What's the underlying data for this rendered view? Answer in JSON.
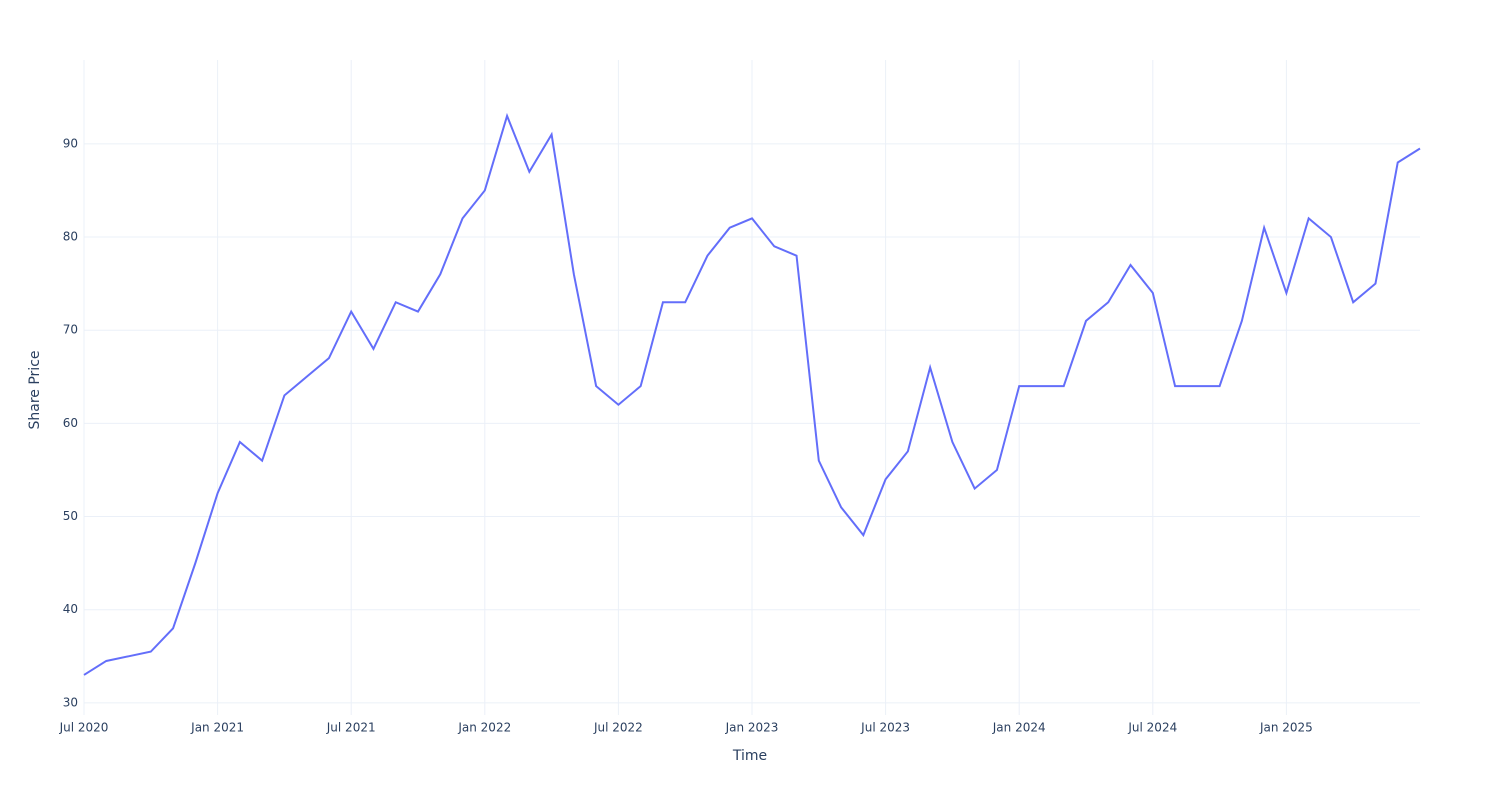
{
  "chart_data": {
    "type": "line",
    "x_label": "Time",
    "y_label": "Share Price",
    "x": [
      "2020-07",
      "2020-08",
      "2020-09",
      "2020-10",
      "2020-11",
      "2020-12",
      "2021-01",
      "2021-02",
      "2021-03",
      "2021-04",
      "2021-05",
      "2021-06",
      "2021-07",
      "2021-08",
      "2021-09",
      "2021-10",
      "2021-11",
      "2021-12",
      "2022-01",
      "2022-02",
      "2022-03",
      "2022-04",
      "2022-05",
      "2022-06",
      "2022-07",
      "2022-08",
      "2022-09",
      "2022-10",
      "2022-11",
      "2022-12",
      "2023-01",
      "2023-02",
      "2023-03",
      "2023-04",
      "2023-05",
      "2023-06",
      "2023-07",
      "2023-08",
      "2023-09",
      "2023-10",
      "2023-11",
      "2023-12",
      "2024-01",
      "2024-02",
      "2024-03",
      "2024-04",
      "2024-05",
      "2024-06",
      "2024-07",
      "2024-08",
      "2024-09",
      "2024-10",
      "2024-11",
      "2024-12",
      "2025-01",
      "2025-02",
      "2025-03",
      "2025-04",
      "2025-05",
      "2025-06",
      "2025-07"
    ],
    "series": [
      {
        "name": "Share Price",
        "color": "#636efa",
        "values": [
          33,
          34.5,
          35,
          35.5,
          38,
          45,
          52.5,
          58,
          56,
          63,
          65,
          67,
          72,
          68,
          73,
          72,
          76,
          82,
          85,
          93,
          87,
          91,
          76,
          64,
          62,
          64,
          73,
          73,
          78,
          81,
          82,
          79,
          78,
          56,
          51,
          48,
          54,
          57,
          66,
          58,
          53,
          55,
          64,
          64,
          64,
          71,
          73,
          77,
          74,
          64,
          64,
          64,
          71,
          81,
          74,
          82,
          80,
          73,
          75,
          88,
          89.5
        ]
      }
    ],
    "xlim": [
      "2020-07",
      "2025-07"
    ],
    "xticks": [
      {
        "value": "2020-07",
        "label": "Jul 2020"
      },
      {
        "value": "2021-01",
        "label": "Jan 2021"
      },
      {
        "value": "2021-07",
        "label": "Jul 2021"
      },
      {
        "value": "2022-01",
        "label": "Jan 2022"
      },
      {
        "value": "2022-07",
        "label": "Jul 2022"
      },
      {
        "value": "2023-01",
        "label": "Jan 2023"
      },
      {
        "value": "2023-07",
        "label": "Jul 2023"
      },
      {
        "value": "2024-01",
        "label": "Jan 2024"
      },
      {
        "value": "2024-07",
        "label": "Jul 2024"
      },
      {
        "value": "2025-01",
        "label": "Jan 2025"
      }
    ],
    "ylim": [
      28.7,
      99
    ],
    "yticks": [
      30,
      40,
      50,
      60,
      70,
      80,
      90
    ],
    "grid": true
  }
}
